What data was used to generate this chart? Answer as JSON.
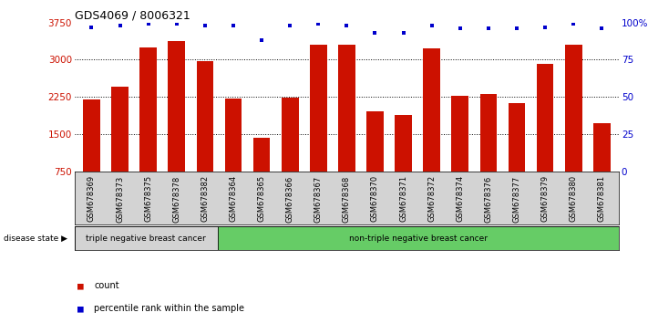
{
  "title": "GDS4069 / 8006321",
  "samples": [
    "GSM678369",
    "GSM678373",
    "GSM678375",
    "GSM678378",
    "GSM678382",
    "GSM678364",
    "GSM678365",
    "GSM678366",
    "GSM678367",
    "GSM678368",
    "GSM678370",
    "GSM678371",
    "GSM678372",
    "GSM678374",
    "GSM678376",
    "GSM678377",
    "GSM678379",
    "GSM678380",
    "GSM678381"
  ],
  "counts": [
    2200,
    2450,
    3250,
    3380,
    2980,
    2220,
    1420,
    2230,
    3310,
    3310,
    1950,
    1880,
    3230,
    2280,
    2310,
    2120,
    2920,
    3300,
    1720
  ],
  "percentiles": [
    97,
    98,
    99,
    99,
    98,
    98,
    88,
    98,
    99,
    98,
    93,
    93,
    98,
    96,
    96,
    96,
    97,
    99,
    96
  ],
  "bar_color": "#cc1100",
  "dot_color": "#0000cc",
  "ylim_left": [
    750,
    3750
  ],
  "ylim_right": [
    0,
    100
  ],
  "yticks_left": [
    750,
    1500,
    2250,
    3000,
    3750
  ],
  "yticks_right": [
    0,
    25,
    50,
    75,
    100
  ],
  "group1_label": "triple negative breast cancer",
  "group2_label": "non-triple negative breast cancer",
  "group1_count": 5,
  "legend_count": "count",
  "legend_pct": "percentile rank within the sample",
  "disease_label": "disease state",
  "background_color": "#ffffff",
  "group1_bg": "#d3d3d3",
  "group2_bg": "#66cc66",
  "xticklabel_bg": "#d3d3d3",
  "grid_lines": [
    1500,
    2250,
    3000
  ]
}
